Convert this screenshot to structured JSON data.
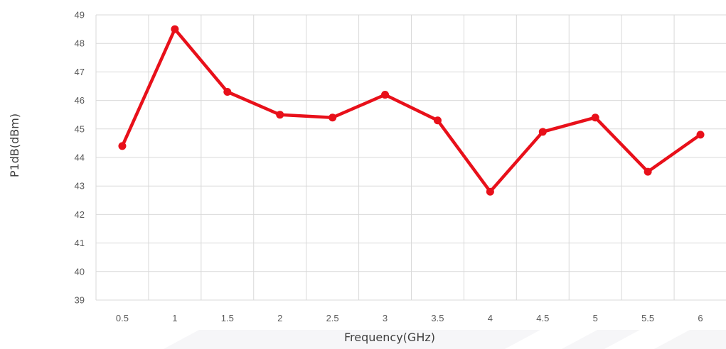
{
  "chart_data": {
    "type": "line",
    "title": "",
    "xlabel": "Frequency(GHz)",
    "ylabel": "P1dB(dBm)",
    "categories": [
      "0.5",
      "1",
      "1.5",
      "2",
      "2.5",
      "3",
      "3.5",
      "4",
      "4.5",
      "5",
      "5.5",
      "6"
    ],
    "series": [
      {
        "values": [
          44.4,
          48.5,
          46.3,
          45.5,
          45.4,
          46.2,
          45.3,
          42.8,
          44.9,
          45.4,
          43.5,
          44.8
        ]
      }
    ],
    "ylim": [
      39,
      49
    ],
    "yticks": [
      "39",
      "40",
      "41",
      "42",
      "43",
      "44",
      "45",
      "46",
      "47",
      "48",
      "49"
    ],
    "grid": true,
    "line_color": "#e8101a",
    "grid_color": "#d9d9d9"
  }
}
